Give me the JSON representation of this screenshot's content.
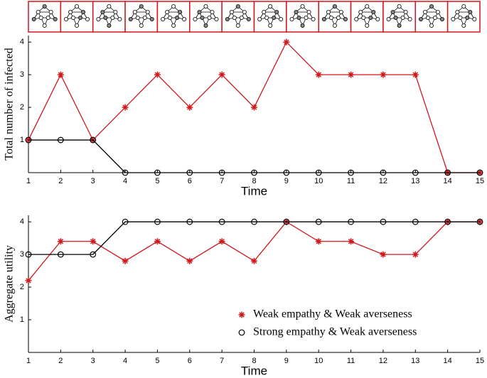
{
  "chart_data": [
    {
      "type": "line",
      "xlabel": "Time",
      "ylabel": "Total number of infected",
      "x": [
        1,
        2,
        3,
        4,
        5,
        6,
        7,
        8,
        9,
        10,
        11,
        12,
        13,
        14,
        15
      ],
      "xlim": [
        1,
        15
      ],
      "xticks": [
        1,
        2,
        3,
        4,
        5,
        6,
        7,
        8,
        9,
        10,
        11,
        12,
        13,
        14,
        15
      ],
      "ylim": [
        0,
        4.2
      ],
      "yticks": [
        1,
        2,
        3,
        4
      ],
      "series": [
        {
          "name": "Weak empathy & Weak averseness",
          "color": "#d0171b",
          "marker": "asterisk",
          "values": [
            1,
            3,
            1,
            2,
            3,
            2,
            3,
            2,
            4,
            3,
            3,
            3,
            3,
            0,
            0
          ]
        },
        {
          "name": "Strong empathy & Weak averseness",
          "color": "#000000",
          "marker": "circle",
          "values": [
            1,
            1,
            1,
            0,
            0,
            0,
            0,
            0,
            0,
            0,
            0,
            0,
            0,
            0,
            0
          ]
        }
      ]
    },
    {
      "type": "line",
      "xlabel": "Time",
      "ylabel": "Aggregate utility",
      "x": [
        1,
        2,
        3,
        4,
        5,
        6,
        7,
        8,
        9,
        10,
        11,
        12,
        13,
        14,
        15
      ],
      "xlim": [
        1,
        15
      ],
      "xticks": [
        1,
        2,
        3,
        4,
        5,
        6,
        7,
        8,
        9,
        10,
        11,
        12,
        13,
        14,
        15
      ],
      "ylim": [
        0,
        4.2
      ],
      "yticks": [
        1,
        2,
        3,
        4
      ],
      "legend": "lower right",
      "series": [
        {
          "name": "Weak empathy & Weak averseness",
          "color": "#d0171b",
          "marker": "asterisk",
          "values": [
            2.2,
            3.4,
            3.4,
            2.8,
            3.4,
            2.8,
            3.4,
            2.8,
            4,
            3.4,
            3.4,
            3,
            3,
            4,
            4
          ]
        },
        {
          "name": "Strong empathy & Weak averseness",
          "color": "#000000",
          "marker": "circle",
          "values": [
            3,
            3,
            3,
            4,
            4,
            4,
            4,
            4,
            4,
            4,
            4,
            4,
            4,
            4,
            4
          ]
        }
      ]
    }
  ]
}
